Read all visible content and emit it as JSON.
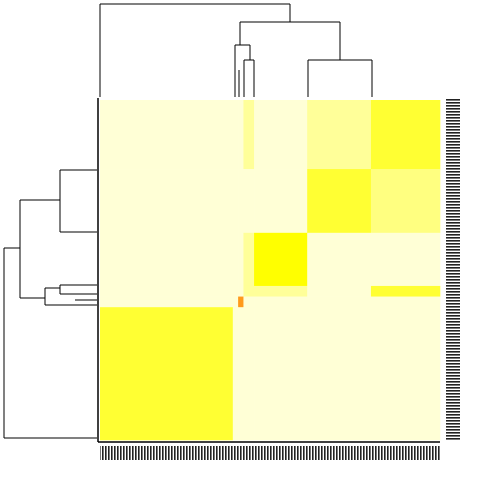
{
  "chart_data": {
    "type": "heatmap",
    "col_sizes": [
      25,
      1,
      1,
      2,
      10,
      12,
      13
    ],
    "row_sizes": [
      13,
      12,
      10,
      2,
      2,
      25
    ],
    "palette": [
      "#ffffd6",
      "#ffff99",
      "#ffff80",
      "#ffff33",
      "#ffff00",
      "#ff9a1a"
    ],
    "values": [
      [
        0,
        0,
        0,
        1,
        0,
        1,
        3
      ],
      [
        0,
        0,
        0,
        0,
        0,
        3,
        2
      ],
      [
        0,
        0,
        0,
        1,
        4,
        0,
        0
      ],
      [
        0,
        0,
        0,
        1,
        1,
        0,
        3
      ],
      [
        0,
        0,
        5,
        0,
        0,
        0,
        0
      ],
      [
        3,
        0,
        0,
        0,
        0,
        0,
        0
      ]
    ]
  }
}
